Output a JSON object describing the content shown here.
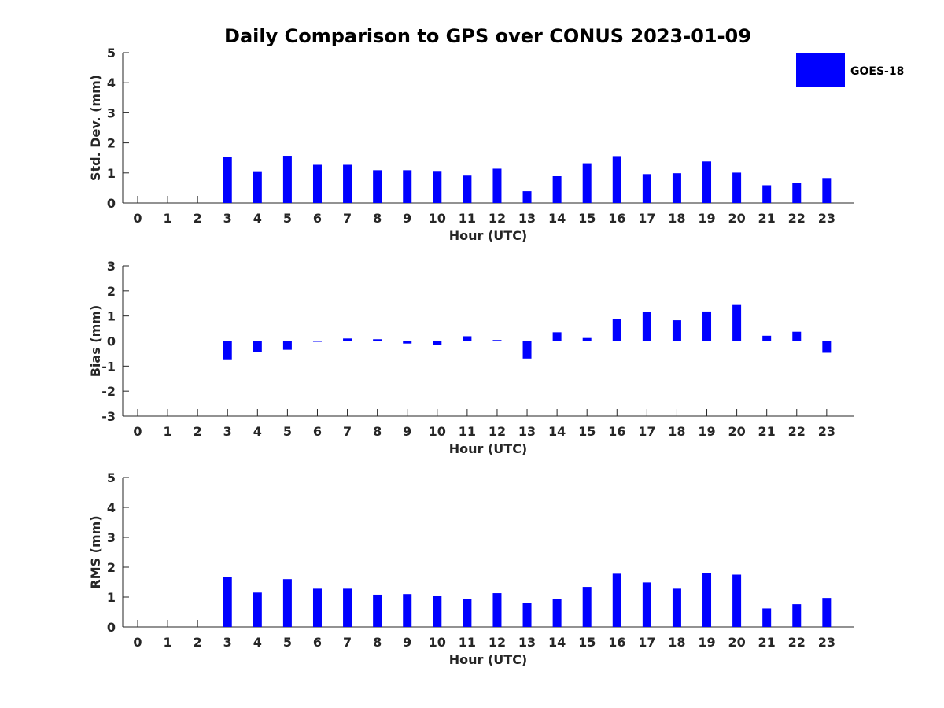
{
  "title": "Daily Comparison to GPS over CONUS 2023-01-09",
  "legend": {
    "label": "GOES-18",
    "color": "#0000ff"
  },
  "chart_data": [
    {
      "type": "bar",
      "name": "std",
      "title": "",
      "xlabel": "Hour (UTC)",
      "ylabel": "Std. Dev. (mm)",
      "ylim": [
        0,
        5
      ],
      "yticks": [
        0,
        1,
        2,
        3,
        4,
        5
      ],
      "categories": [
        "0",
        "1",
        "2",
        "3",
        "4",
        "5",
        "6",
        "7",
        "8",
        "9",
        "10",
        "11",
        "12",
        "13",
        "14",
        "15",
        "16",
        "17",
        "18",
        "19",
        "20",
        "21",
        "22",
        "23"
      ],
      "series": [
        {
          "name": "GOES-18",
          "color": "#0000ff",
          "values": [
            null,
            null,
            null,
            1.53,
            1.03,
            1.57,
            1.27,
            1.27,
            1.09,
            1.09,
            1.04,
            0.91,
            1.14,
            0.39,
            0.89,
            1.32,
            1.56,
            0.96,
            0.99,
            1.38,
            1.01,
            0.59,
            0.67,
            0.83
          ]
        }
      ]
    },
    {
      "type": "bar",
      "name": "bias",
      "title": "",
      "xlabel": "Hour (UTC)",
      "ylabel": "Bias (mm)",
      "ylim": [
        -3,
        3
      ],
      "yticks": [
        -3,
        -2,
        -1,
        0,
        1,
        2,
        3
      ],
      "categories": [
        "0",
        "1",
        "2",
        "3",
        "4",
        "5",
        "6",
        "7",
        "8",
        "9",
        "10",
        "11",
        "12",
        "13",
        "14",
        "15",
        "16",
        "17",
        "18",
        "19",
        "20",
        "21",
        "22",
        "23"
      ],
      "series": [
        {
          "name": "GOES-18",
          "color": "#0000ff",
          "values": [
            null,
            null,
            null,
            -0.73,
            -0.45,
            -0.35,
            0.0,
            0.1,
            0.07,
            -0.1,
            -0.17,
            0.19,
            0.04,
            -0.7,
            0.35,
            0.12,
            0.87,
            1.15,
            0.83,
            1.18,
            1.44,
            0.21,
            0.37,
            -0.47
          ]
        }
      ]
    },
    {
      "type": "bar",
      "name": "rms",
      "title": "",
      "xlabel": "Hour (UTC)",
      "ylabel": "RMS (mm)",
      "ylim": [
        0,
        5
      ],
      "yticks": [
        0,
        1,
        2,
        3,
        4,
        5
      ],
      "categories": [
        "0",
        "1",
        "2",
        "3",
        "4",
        "5",
        "6",
        "7",
        "8",
        "9",
        "10",
        "11",
        "12",
        "13",
        "14",
        "15",
        "16",
        "17",
        "18",
        "19",
        "20",
        "21",
        "22",
        "23"
      ],
      "series": [
        {
          "name": "GOES-18",
          "color": "#0000ff",
          "values": [
            null,
            null,
            null,
            1.67,
            1.15,
            1.6,
            1.28,
            1.28,
            1.08,
            1.1,
            1.05,
            0.94,
            1.13,
            0.81,
            0.94,
            1.34,
            1.78,
            1.49,
            1.28,
            1.81,
            1.75,
            0.62,
            0.76,
            0.97
          ]
        }
      ]
    }
  ]
}
